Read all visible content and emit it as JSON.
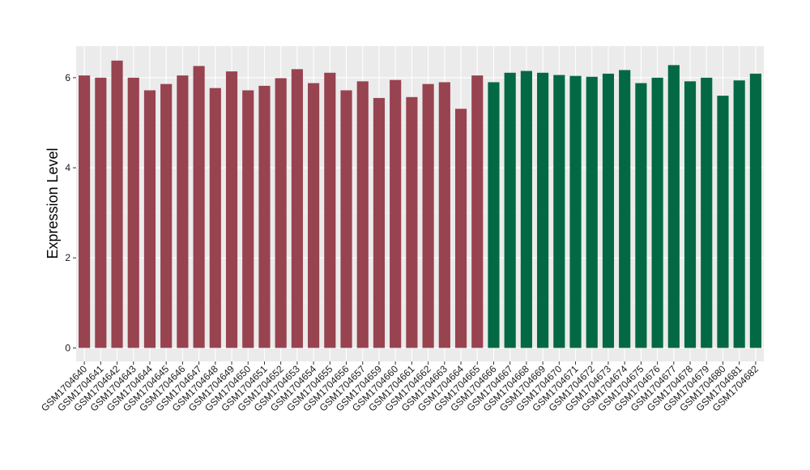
{
  "chart_data": {
    "type": "bar",
    "title": "",
    "xlabel": "",
    "ylabel": "Expression Level",
    "ylim": [
      -0.3,
      6.7
    ],
    "yticks": [
      0,
      2,
      4,
      6
    ],
    "grid": true,
    "legend": "none",
    "categories": [
      "GSM1704640",
      "GSM1704641",
      "GSM1704642",
      "GSM1704643",
      "GSM1704644",
      "GSM1704645",
      "GSM1704646",
      "GSM1704647",
      "GSM1704648",
      "GSM1704649",
      "GSM1704650",
      "GSM1704651",
      "GSM1704652",
      "GSM1704653",
      "GSM1704654",
      "GSM1704655",
      "GSM1704656",
      "GSM1704657",
      "GSM1704659",
      "GSM1704660",
      "GSM1704661",
      "GSM1704662",
      "GSM1704663",
      "GSM1704664",
      "GSM1704665",
      "GSM1704666",
      "GSM1704667",
      "GSM1704668",
      "GSM1704669",
      "GSM1704670",
      "GSM1704671",
      "GSM1704672",
      "GSM1704673",
      "GSM1704674",
      "GSM1704675",
      "GSM1704676",
      "GSM1704677",
      "GSM1704678",
      "GSM1704679",
      "GSM1704680",
      "GSM1704681",
      "GSM1704682"
    ],
    "values": [
      6.05,
      6.0,
      6.38,
      6.0,
      5.72,
      5.86,
      6.05,
      6.26,
      5.77,
      6.14,
      5.72,
      5.82,
      5.99,
      6.19,
      5.88,
      6.11,
      5.72,
      5.92,
      5.55,
      5.95,
      5.57,
      5.86,
      5.9,
      5.31,
      6.05,
      5.9,
      6.11,
      6.15,
      6.11,
      6.06,
      6.04,
      6.02,
      6.09,
      6.17,
      5.88,
      6.0,
      6.28,
      5.92,
      6.0,
      5.6,
      5.94,
      6.09
    ],
    "group_sizes": [
      25,
      17
    ],
    "colors": [
      "#984350",
      "#036944"
    ]
  }
}
